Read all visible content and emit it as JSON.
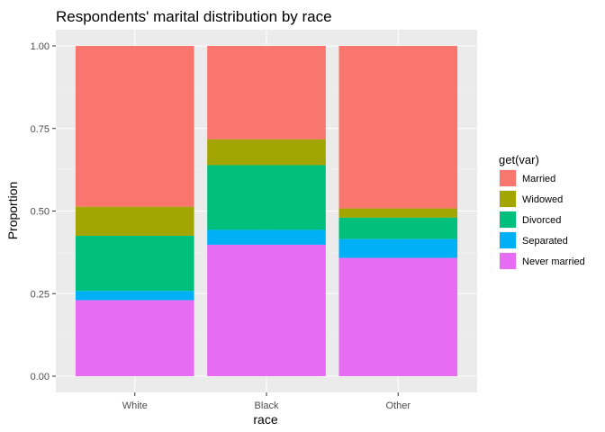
{
  "chart_data": {
    "type": "bar",
    "stacked": true,
    "title": "Respondents' marital distribution by race",
    "xlabel": "race",
    "ylabel": "Proportion",
    "ylim": [
      0,
      1
    ],
    "yticks": [
      "0.00",
      "0.25",
      "0.50",
      "0.75",
      "1.00"
    ],
    "ytick_values": [
      0,
      0.25,
      0.5,
      0.75,
      1.0
    ],
    "categories": [
      "White",
      "Black",
      "Other"
    ],
    "grid": true,
    "legend_position": "right",
    "legend_title": "get(var)",
    "series": [
      {
        "name": "Married",
        "color": "#F8766D",
        "values": [
          0.487,
          0.283,
          0.492
        ]
      },
      {
        "name": "Widowed",
        "color": "#A3A500",
        "values": [
          0.088,
          0.078,
          0.028
        ]
      },
      {
        "name": "Divorced",
        "color": "#00BF7D",
        "values": [
          0.167,
          0.196,
          0.065
        ]
      },
      {
        "name": "Separated",
        "color": "#00B0F6",
        "values": [
          0.028,
          0.045,
          0.057
        ]
      },
      {
        "name": "Never married",
        "color": "#E76BF3",
        "values": [
          0.23,
          0.398,
          0.358
        ]
      }
    ]
  }
}
